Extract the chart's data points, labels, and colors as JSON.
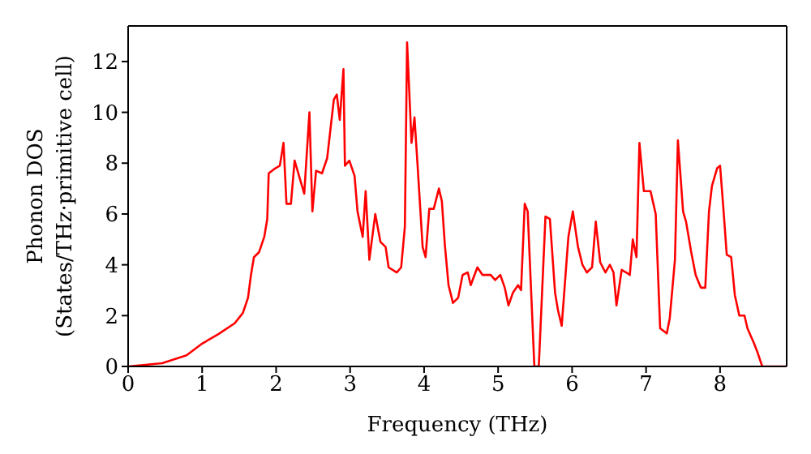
{
  "chart_data": {
    "type": "line",
    "xlabel": "Frequency (THz)",
    "ylabel": "Phonon DOS\n(States/THz·primitive cell)",
    "xlim": [
      0,
      8.9
    ],
    "ylim": [
      0,
      13.4
    ],
    "xticks": [
      0,
      1,
      2,
      3,
      4,
      5,
      6,
      7,
      8
    ],
    "yticks": [
      0,
      2,
      4,
      6,
      8,
      10,
      12
    ],
    "legend": false,
    "marker": "none",
    "line_style": "solid",
    "series": [
      {
        "color": "#ff0000",
        "x": [
          0,
          0.46,
          0.79,
          1.0,
          1.22,
          1.44,
          1.55,
          1.62,
          1.66,
          1.7,
          1.77,
          1.84,
          1.88,
          1.9,
          1.99,
          2.05,
          2.1,
          2.14,
          2.2,
          2.25,
          2.34,
          2.38,
          2.45,
          2.49,
          2.54,
          2.62,
          2.69,
          2.78,
          2.82,
          2.86,
          2.91,
          2.93,
          2.99,
          3.06,
          3.1,
          3.17,
          3.21,
          3.26,
          3.34,
          3.41,
          3.48,
          3.52,
          3.63,
          3.69,
          3.74,
          3.77,
          3.83,
          3.87,
          3.91,
          3.98,
          4.02,
          4.07,
          4.13,
          4.2,
          4.24,
          4.28,
          4.33,
          4.39,
          4.46,
          4.52,
          4.59,
          4.63,
          4.72,
          4.79,
          4.9,
          4.96,
          5.03,
          5.09,
          5.14,
          5.2,
          5.27,
          5.31,
          5.36,
          5.4,
          5.49,
          5.55,
          5.64,
          5.7,
          5.77,
          5.81,
          5.86,
          5.95,
          6.01,
          6.08,
          6.14,
          6.2,
          6.27,
          6.32,
          6.38,
          6.45,
          6.51,
          6.56,
          6.6,
          6.67,
          6.73,
          6.78,
          6.82,
          6.87,
          6.91,
          6.97,
          7.06,
          7.13,
          7.19,
          7.28,
          7.32,
          7.39,
          7.43,
          7.5,
          7.54,
          7.61,
          7.67,
          7.74,
          7.8,
          7.85,
          7.89,
          7.96,
          8.0,
          8.04,
          8.09,
          8.15,
          8.2,
          8.26,
          8.33,
          8.37,
          8.46,
          8.5,
          8.57,
          8.9
        ],
        "values": [
          0,
          0.13,
          0.44,
          0.9,
          1.27,
          1.7,
          2.1,
          2.7,
          3.6,
          4.3,
          4.5,
          5.1,
          5.8,
          7.6,
          7.8,
          7.9,
          8.8,
          6.4,
          6.4,
          8.1,
          7.2,
          6.8,
          10.0,
          6.1,
          7.7,
          7.6,
          8.2,
          10.5,
          10.7,
          9.7,
          11.7,
          7.9,
          8.1,
          7.5,
          6.1,
          5.1,
          6.9,
          4.2,
          6.0,
          4.9,
          4.7,
          3.9,
          3.7,
          3.9,
          5.5,
          12.75,
          8.8,
          9.8,
          8.0,
          4.7,
          4.3,
          6.2,
          6.2,
          7.0,
          6.5,
          4.8,
          3.2,
          2.5,
          2.7,
          3.6,
          3.7,
          3.2,
          3.9,
          3.6,
          3.6,
          3.4,
          3.6,
          3.1,
          2.4,
          2.9,
          3.2,
          3.0,
          6.4,
          6.1,
          0,
          0,
          5.9,
          5.8,
          2.9,
          2.2,
          1.6,
          5.1,
          6.1,
          4.7,
          4.0,
          3.7,
          3.9,
          5.7,
          4.1,
          3.7,
          4.0,
          3.7,
          2.4,
          3.8,
          3.7,
          3.6,
          5.0,
          4.3,
          8.8,
          6.9,
          6.9,
          6.0,
          1.5,
          1.3,
          1.9,
          4.2,
          8.9,
          6.1,
          5.7,
          4.5,
          3.6,
          3.1,
          3.1,
          6.1,
          7.1,
          7.8,
          7.9,
          6.4,
          4.4,
          4.3,
          2.8,
          2.0,
          2.0,
          1.5,
          0.9,
          0.6,
          0,
          0
        ]
      }
    ]
  }
}
